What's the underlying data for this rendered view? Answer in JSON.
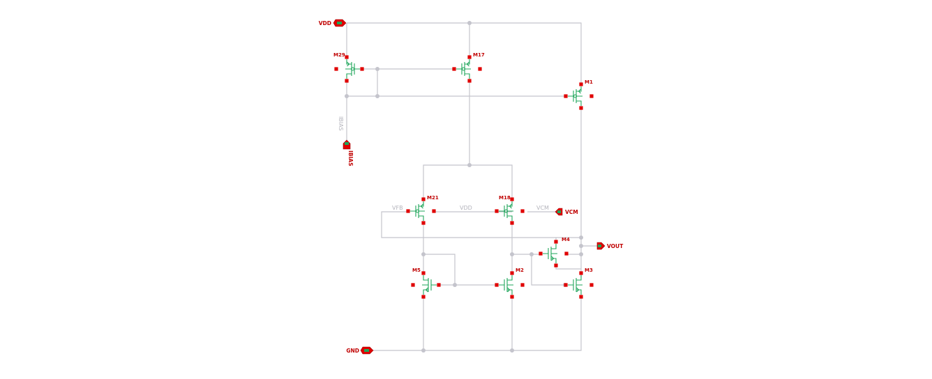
{
  "ports": {
    "vdd": "VDD",
    "ibias": "IBIAS",
    "vcm": "VCM",
    "vout": "VOUT",
    "gnd": "GND"
  },
  "net_labels": {
    "ibias_wire": "IBIAS",
    "vfb": "VFB",
    "vdd_body": "VDD",
    "vcm": "VCM"
  },
  "instances": {
    "m29": "M29",
    "m17": "M17",
    "m1": "M1",
    "m21": "M21",
    "m18": "M18",
    "m4": "M4",
    "m5": "M5",
    "m2": "M2",
    "m3": "M3"
  },
  "colors": {
    "wire": "#c4c4cc",
    "pin": "#e00000",
    "device": "#1ea55a",
    "label": "#c00000"
  }
}
